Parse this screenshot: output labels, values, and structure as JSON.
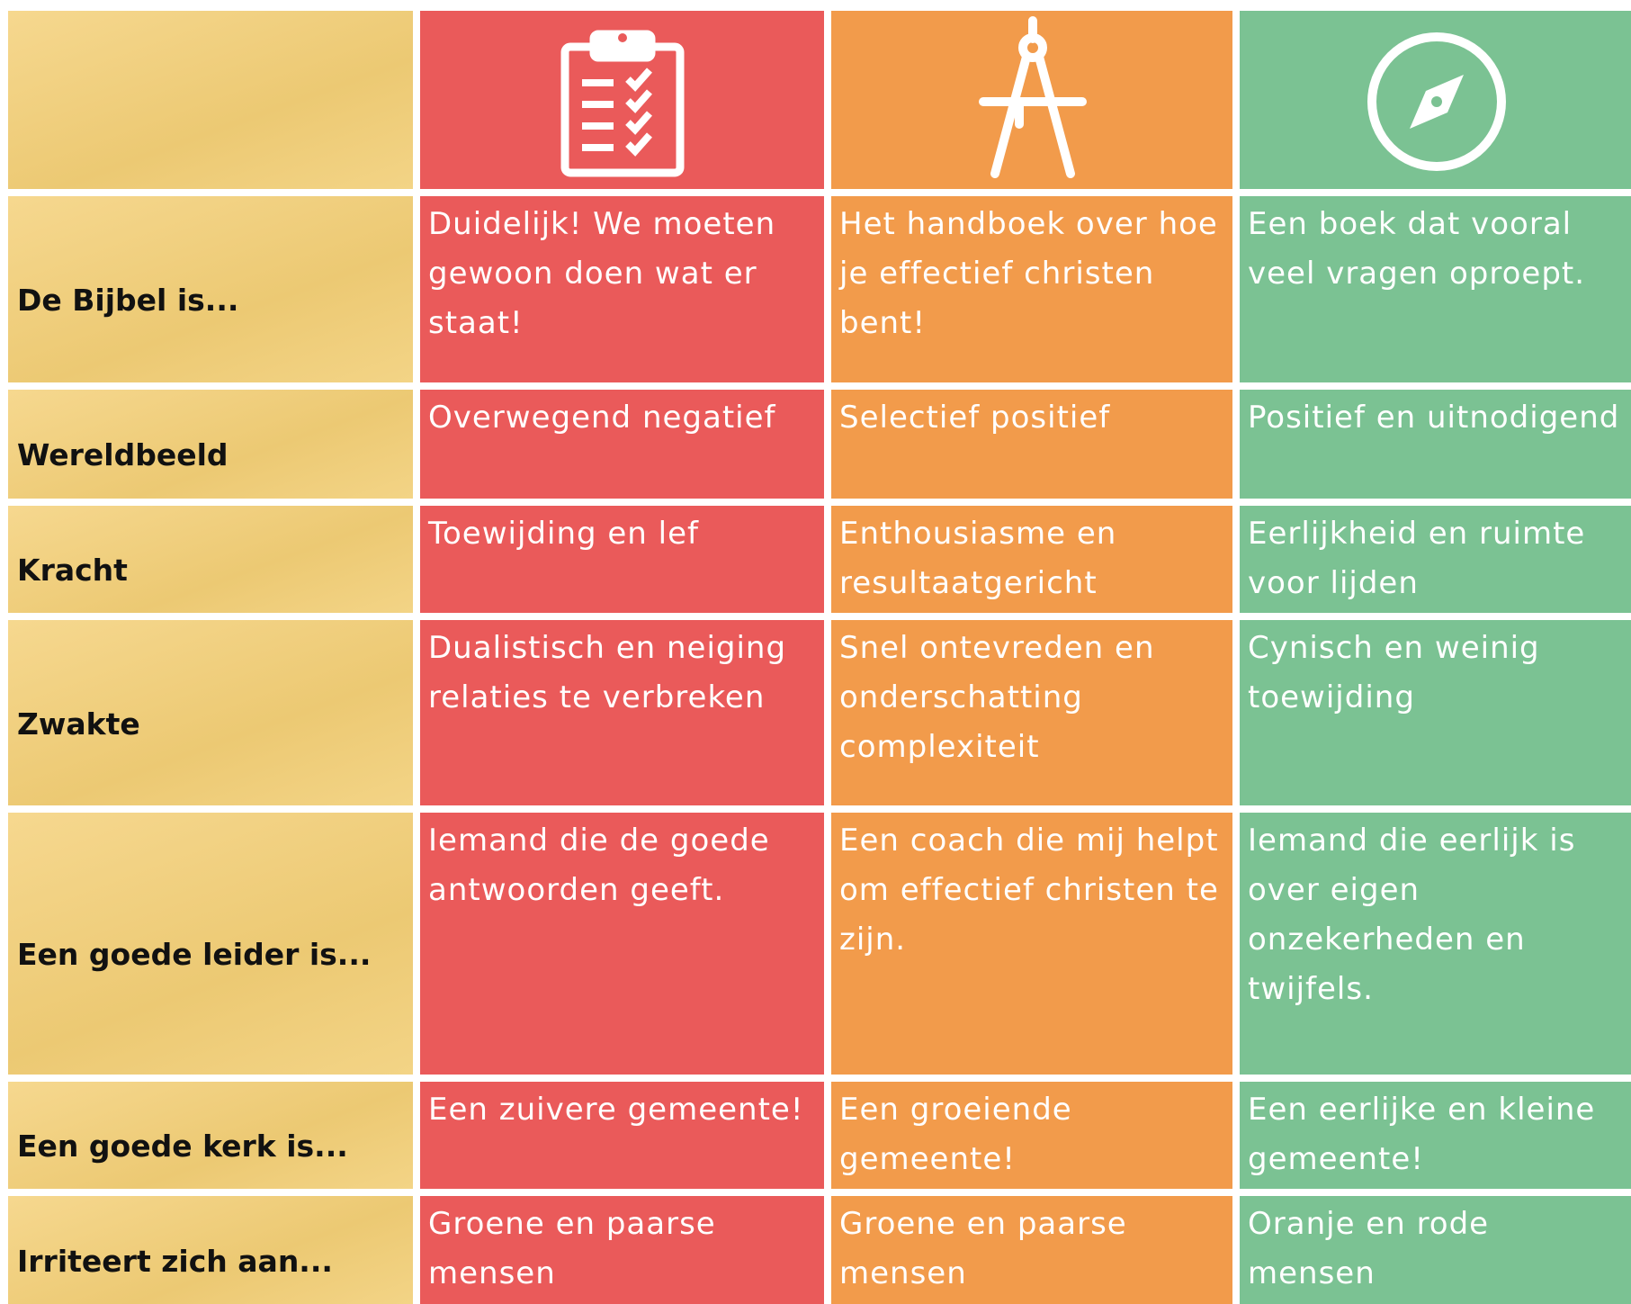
{
  "table": {
    "rows": [
      {
        "label": "De Bijbel is...",
        "cells": [
          "Duidelijk! We moeten gewoon doen wat er staat!",
          "Het handboek over hoe je effectief christen bent!",
          "Een boek dat vooral veel vragen oproept."
        ]
      },
      {
        "label": "Wereldbeeld",
        "cells": [
          "Overwegend negatief",
          "Selectief positief",
          "Positief en uitnodigend"
        ]
      },
      {
        "label": "Kracht",
        "cells": [
          "Toewijding en lef",
          "Enthousiasme en resultaatgericht",
          "Eerlijkheid en ruimte voor lijden"
        ]
      },
      {
        "label": "Zwakte",
        "cells": [
          "Dualistisch en neiging relaties te verbreken",
          "Snel ontevreden en onderschatting complexiteit",
          "Cynisch en weinig toewijding"
        ]
      },
      {
        "label": "Een goede leider is...",
        "cells": [
          "Iemand die de goede antwoorden geeft.",
          "Een coach die mij helpt om effectief christen te zijn.",
          "Iemand die eerlijk is over eigen onzekerheden en twijfels."
        ]
      },
      {
        "label": "Een goede kerk is...",
        "cells": [
          "Een zuivere gemeente!",
          "Een groeiende gemeente!",
          "Een eerlijke en kleine gemeente!"
        ]
      },
      {
        "label": "Irriteert zich aan...",
        "cells": [
          "Groene en paarse mensen",
          "Groene en paarse mensen",
          "Oranje en rode mensen"
        ]
      }
    ]
  }
}
